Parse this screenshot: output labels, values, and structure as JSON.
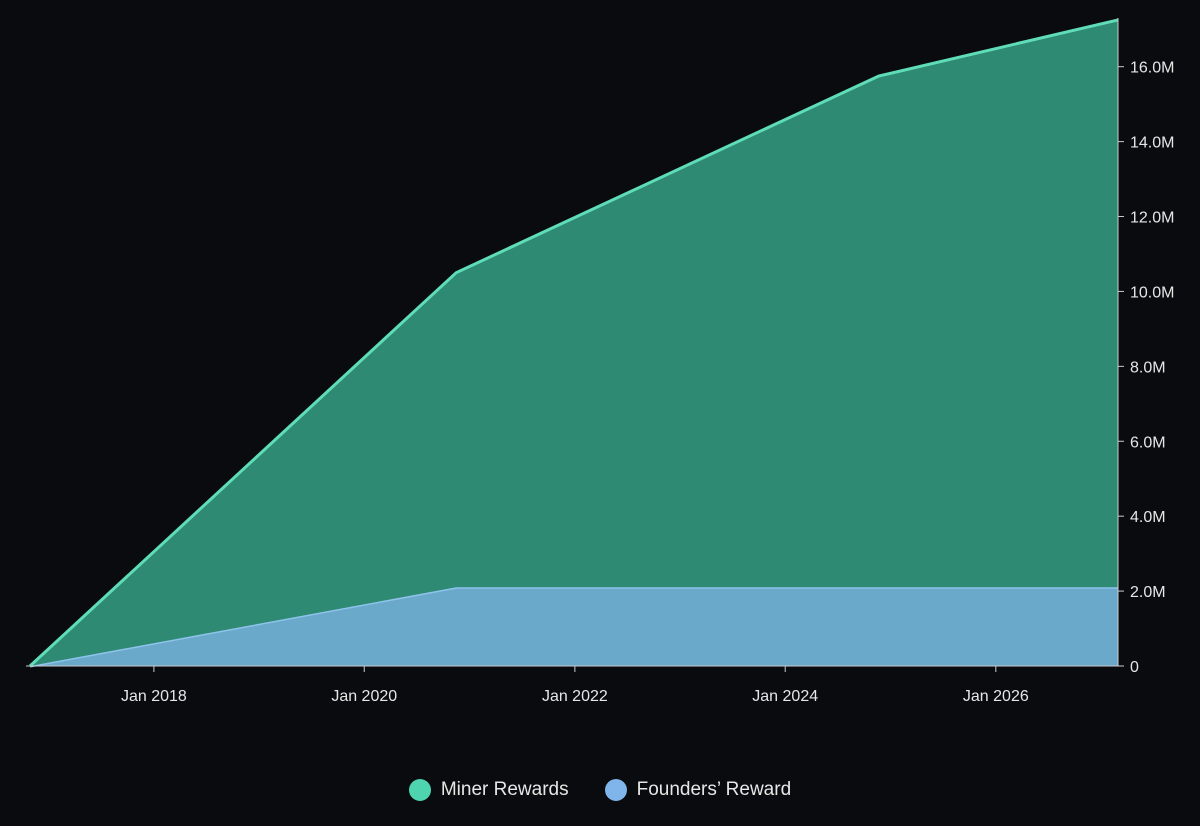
{
  "chart_data": {
    "type": "area",
    "stacked": true,
    "title": "",
    "xlabel": "",
    "ylabel": "",
    "x_axis": {
      "type": "date",
      "range": [
        "2016-10-28",
        "2027-03-01"
      ],
      "ticks": [
        {
          "date": "2018-01-01",
          "label": "Jan 2018"
        },
        {
          "date": "2020-01-01",
          "label": "Jan 2020"
        },
        {
          "date": "2022-01-01",
          "label": "Jan 2022"
        },
        {
          "date": "2024-01-01",
          "label": "Jan 2024"
        },
        {
          "date": "2026-01-01",
          "label": "Jan 2026"
        }
      ]
    },
    "y_axis": {
      "position": "right",
      "range": [
        0,
        17300000
      ],
      "ticks": [
        {
          "value": 0,
          "label": "0"
        },
        {
          "value": 2000000,
          "label": "2.0M"
        },
        {
          "value": 4000000,
          "label": "4.0M"
        },
        {
          "value": 6000000,
          "label": "6.0M"
        },
        {
          "value": 8000000,
          "label": "8.0M"
        },
        {
          "value": 10000000,
          "label": "10.0M"
        },
        {
          "value": 12000000,
          "label": "12.0M"
        },
        {
          "value": 14000000,
          "label": "14.0M"
        },
        {
          "value": 16000000,
          "label": "16.0M"
        }
      ]
    },
    "grid": false,
    "legend": "bottom-center",
    "series": [
      {
        "name": "Founders' Reward",
        "color": "#6aa9c9",
        "stroke": "#8fc3ec",
        "swatch": "#7fb5ea",
        "points": [
          {
            "date": "2016-10-28",
            "value": 0
          },
          {
            "date": "2020-11-15",
            "value": 2100000
          },
          {
            "date": "2027-03-01",
            "value": 2100000
          }
        ]
      },
      {
        "name": "Miner Rewards",
        "color": "#2f8a73",
        "stroke": "#5fdcb8",
        "swatch": "#4fd4b0",
        "points": [
          {
            "date": "2016-10-28",
            "value": 0
          },
          {
            "date": "2020-11-15",
            "value": 8400000
          },
          {
            "date": "2024-11-20",
            "value": 13650000
          },
          {
            "date": "2027-03-01",
            "value": 15150000
          }
        ]
      }
    ]
  },
  "legend_items": [
    {
      "label": "Miner Rewards",
      "color": "#4fd4b0"
    },
    {
      "label": "Founders’ Reward",
      "color": "#7fb5ea"
    }
  ]
}
